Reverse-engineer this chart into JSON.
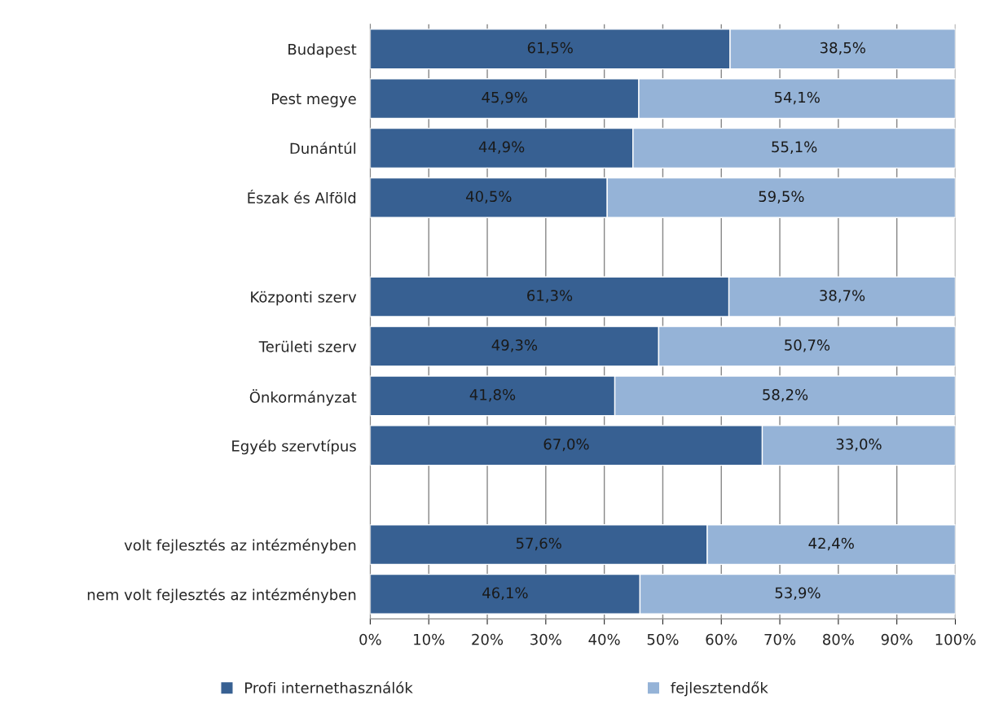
{
  "chart_data": {
    "type": "bar",
    "orientation": "horizontal",
    "stacked": true,
    "categories": [
      "Budapest",
      "Pest megye",
      "Dunántúl",
      "Észak és Alföld",
      null,
      "Központi szerv",
      "Területi szerv",
      "Önkormányzat",
      "Egyéb szervtípus",
      null,
      "volt fejlesztés az intézményben",
      "nem volt fejlesztés az intézményben"
    ],
    "series": [
      {
        "name": "Profi internethasználók",
        "color": "#376092",
        "values": [
          61.5,
          45.9,
          44.9,
          40.5,
          null,
          61.3,
          49.3,
          41.8,
          67.0,
          null,
          57.6,
          46.1
        ],
        "value_labels": [
          "61,5%",
          "45,9%",
          "44,9%",
          "40,5%",
          null,
          "61,3%",
          "49,3%",
          "41,8%",
          "67,0%",
          null,
          "57,6%",
          "46,1%"
        ]
      },
      {
        "name": "fejlesztendők",
        "color": "#95b3d7",
        "values": [
          38.5,
          54.1,
          55.1,
          59.5,
          null,
          38.7,
          50.7,
          58.2,
          33.0,
          null,
          42.4,
          53.9
        ],
        "value_labels": [
          "38,5%",
          "54,1%",
          "55,1%",
          "59,5%",
          null,
          "38,7%",
          "50,7%",
          "58,2%",
          "33,0%",
          null,
          "42,4%",
          "53,9%"
        ]
      }
    ],
    "xlim": [
      0,
      100
    ],
    "xticks": [
      {
        "value": 0,
        "label": "0%"
      },
      {
        "value": 10,
        "label": "10%"
      },
      {
        "value": 20,
        "label": "20%"
      },
      {
        "value": 30,
        "label": "30%"
      },
      {
        "value": 40,
        "label": "40%"
      },
      {
        "value": 50,
        "label": "50%"
      },
      {
        "value": 60,
        "label": "60%"
      },
      {
        "value": 70,
        "label": "70%"
      },
      {
        "value": 80,
        "label": "80%"
      },
      {
        "value": 90,
        "label": "90%"
      },
      {
        "value": 100,
        "label": "100%"
      }
    ],
    "grid": "x",
    "legend": "bottom"
  }
}
